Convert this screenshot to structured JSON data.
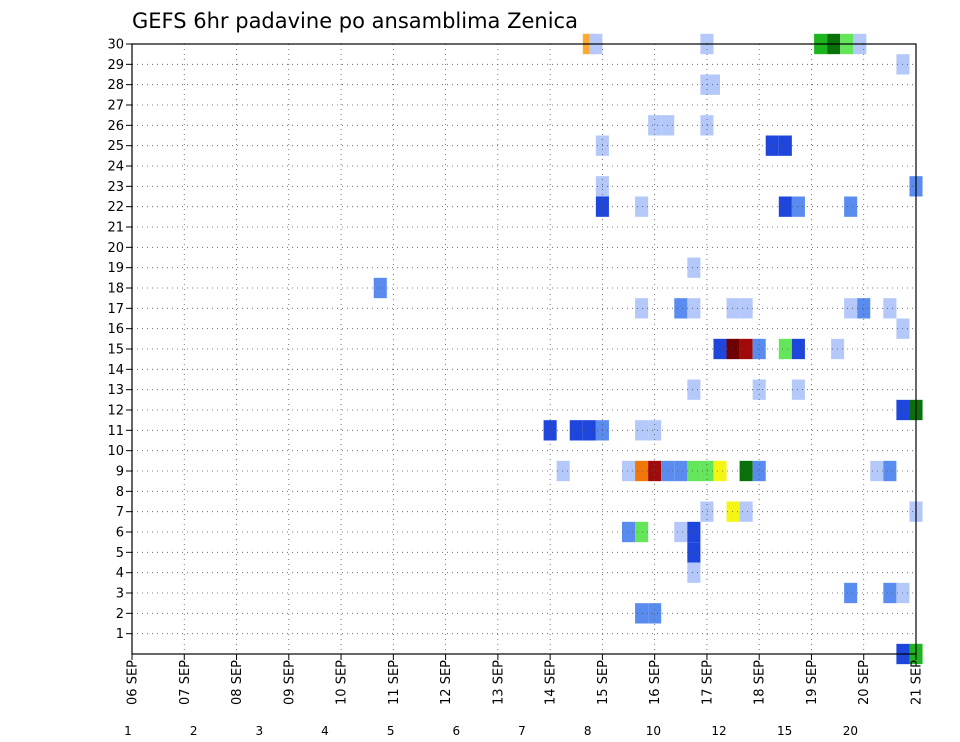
{
  "chart_data": {
    "type": "heatmap",
    "title": "GEFS 6hr padavine po ansamblima Zenica",
    "x_ticks": [
      "06 SEP",
      "07 SEP",
      "08 SEP",
      "09 SEP",
      "10 SEP",
      "11 SEP",
      "12 SEP",
      "13 SEP",
      "14 SEP",
      "15 SEP",
      "16 SEP",
      "17 SEP",
      "18 SEP",
      "19 SEP",
      "20 SEP",
      "21 SEP"
    ],
    "y_ticks": [
      1,
      2,
      3,
      4,
      5,
      6,
      7,
      8,
      9,
      10,
      11,
      12,
      13,
      14,
      15,
      16,
      17,
      18,
      19,
      20,
      21,
      22,
      23,
      24,
      25,
      26,
      27,
      28,
      29,
      30
    ],
    "x_range": [
      0,
      60
    ],
    "y_range": [
      0,
      30
    ],
    "grid": true,
    "colorbar": {
      "labels": [
        "1",
        "2",
        "3",
        "4",
        "5",
        "6",
        "7",
        "8",
        "10",
        "12",
        "15",
        "20"
      ],
      "colors": [
        "#b4c8fa",
        "#5a8cf0",
        "#1e46dc",
        "#64e65a",
        "#1eb41e",
        "#0a700a",
        "#f5f514",
        "#faaa32",
        "#f0780a",
        "#dc2814",
        "#a00a0a",
        "#6e0000"
      ]
    },
    "cells": [
      [
        35,
        30,
        7
      ],
      [
        35.5,
        30,
        0
      ],
      [
        44,
        30,
        0
      ],
      [
        52.7,
        30,
        4
      ],
      [
        53.7,
        30,
        5
      ],
      [
        54.7,
        30,
        3
      ],
      [
        55.7,
        30,
        0
      ],
      [
        59,
        29,
        0
      ],
      [
        44,
        28,
        0
      ],
      [
        44.5,
        28,
        0
      ],
      [
        40,
        26,
        0
      ],
      [
        41,
        26,
        0
      ],
      [
        44,
        26,
        0
      ],
      [
        36,
        25,
        0
      ],
      [
        49,
        25,
        2
      ],
      [
        50,
        25,
        2
      ],
      [
        36,
        23,
        0
      ],
      [
        60,
        23,
        1
      ],
      [
        36,
        22,
        2
      ],
      [
        39,
        22,
        0
      ],
      [
        50,
        22,
        2
      ],
      [
        51,
        22,
        1
      ],
      [
        55,
        22,
        1
      ],
      [
        43,
        19,
        0
      ],
      [
        19,
        18,
        1
      ],
      [
        39,
        17,
        0
      ],
      [
        42,
        17,
        1
      ],
      [
        43,
        17,
        0
      ],
      [
        46,
        17,
        0
      ],
      [
        47,
        17,
        0
      ],
      [
        55,
        17,
        0
      ],
      [
        56,
        17,
        1
      ],
      [
        58,
        17,
        0
      ],
      [
        59,
        16,
        0
      ],
      [
        45,
        15,
        2
      ],
      [
        46,
        15,
        11
      ],
      [
        47,
        15,
        10
      ],
      [
        48,
        15,
        1
      ],
      [
        50,
        15,
        3
      ],
      [
        51,
        15,
        2
      ],
      [
        54,
        15,
        0
      ],
      [
        43,
        13,
        0
      ],
      [
        48,
        13,
        0
      ],
      [
        51,
        13,
        0
      ],
      [
        59,
        12,
        2
      ],
      [
        60,
        12,
        5
      ],
      [
        32,
        11,
        2
      ],
      [
        34,
        11,
        2
      ],
      [
        35,
        11,
        2
      ],
      [
        36,
        11,
        1
      ],
      [
        39,
        11,
        0
      ],
      [
        40,
        11,
        0
      ],
      [
        33,
        9,
        0
      ],
      [
        38,
        9,
        0
      ],
      [
        39,
        9,
        8
      ],
      [
        40,
        9,
        10
      ],
      [
        41,
        9,
        1
      ],
      [
        42,
        9,
        1
      ],
      [
        43,
        9,
        3
      ],
      [
        44,
        9,
        3
      ],
      [
        45,
        9,
        6
      ],
      [
        47,
        9,
        5
      ],
      [
        48,
        9,
        1
      ],
      [
        57,
        9,
        0
      ],
      [
        58,
        9,
        1
      ],
      [
        44,
        7,
        0
      ],
      [
        46,
        7,
        6
      ],
      [
        47,
        7,
        0
      ],
      [
        60,
        7,
        0
      ],
      [
        38,
        6,
        1
      ],
      [
        39,
        6,
        3
      ],
      [
        42,
        6,
        0
      ],
      [
        43,
        6,
        2
      ],
      [
        43,
        5,
        2
      ],
      [
        43,
        4,
        0
      ],
      [
        55,
        3,
        1
      ],
      [
        58,
        3,
        1
      ],
      [
        59,
        3,
        0
      ],
      [
        39,
        2,
        1
      ],
      [
        40,
        2,
        1
      ],
      [
        59,
        0,
        2
      ],
      [
        60,
        0,
        4
      ]
    ]
  }
}
